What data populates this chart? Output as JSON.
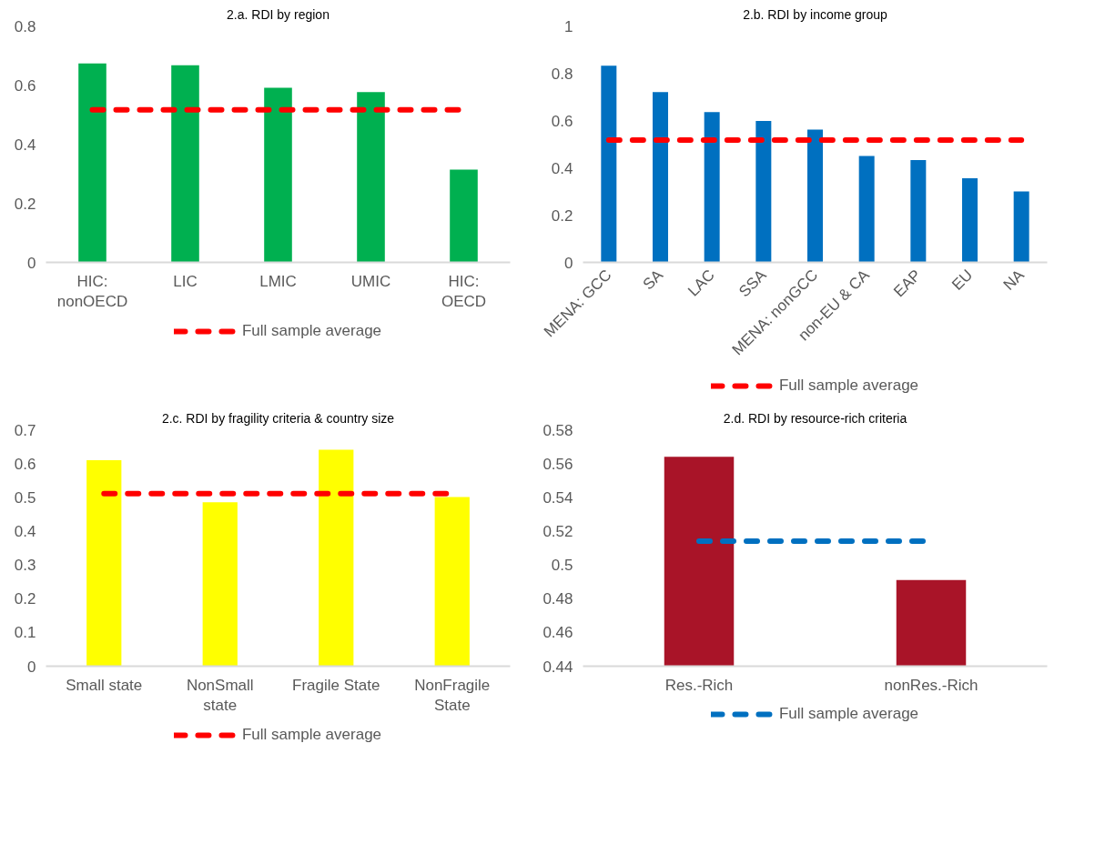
{
  "chart_data": [
    {
      "type": "bar",
      "title": "2.a. RDI by region",
      "categories": [
        "HIC:\nnonOECD",
        "LIC",
        "LMIC",
        "UMIC",
        "HIC:\nOECD"
      ],
      "ylim": [
        0,
        0.8
      ],
      "yticks": [
        0,
        0.2,
        0.4,
        0.6,
        0.8
      ],
      "grid": false,
      "legend": "bottom",
      "series": [
        {
          "color": "#00b050",
          "values": [
            0.673,
            0.667,
            0.591,
            0.576,
            0.314
          ]
        },
        {
          "type": "line",
          "name": "Full sample average",
          "color": "#ff0000",
          "line_style": "dashed",
          "values": [
            0.516,
            0.516,
            0.516,
            0.516,
            0.516
          ]
        }
      ]
    },
    {
      "type": "bar",
      "title": "2.b. RDI by income group",
      "categories": [
        "MENA: GCC",
        "SA",
        "LAC",
        "SSA",
        "MENA: nonGCC",
        "non-EU & CA",
        "EAP",
        "EU",
        "NA"
      ],
      "ylim": [
        0,
        1
      ],
      "yticks": [
        0,
        0.2,
        0.4,
        0.6,
        0.8,
        1
      ],
      "grid": false,
      "legend": "bottom",
      "series": [
        {
          "color": "#0070c0",
          "values": [
            0.832,
            0.72,
            0.636,
            0.598,
            0.562,
            0.45,
            0.433,
            0.356,
            0.3
          ]
        },
        {
          "type": "line",
          "name": "Full sample average",
          "color": "#ff0000",
          "line_style": "dashed",
          "values": [
            0.517,
            0.517,
            0.517,
            0.517,
            0.517,
            0.517,
            0.517,
            0.517,
            0.517
          ]
        }
      ]
    },
    {
      "type": "bar",
      "title": "2.c. RDI by fragility criteria & country size",
      "categories": [
        "Small state",
        "NonSmall\nstate",
        "Fragile State",
        "NonFragile\nState"
      ],
      "ylim": [
        0,
        0.7
      ],
      "yticks": [
        0,
        0.1,
        0.2,
        0.3,
        0.4,
        0.5,
        0.6,
        0.7
      ],
      "grid": false,
      "legend": "bottom",
      "series": [
        {
          "color": "#ffff00",
          "values": [
            0.61,
            0.485,
            0.641,
            0.501
          ]
        },
        {
          "type": "line",
          "name": "Full sample average",
          "color": "#ff0000",
          "line_style": "dashed",
          "values": [
            0.511,
            0.511,
            0.511,
            0.511
          ]
        }
      ]
    },
    {
      "type": "bar",
      "title": "2.d. RDI by resource-rich criteria",
      "categories": [
        "Res.-Rich",
        "nonRes.-Rich"
      ],
      "ylim": [
        0.44,
        0.58
      ],
      "yticks": [
        0.44,
        0.46,
        0.48,
        0.5,
        0.52,
        0.54,
        0.56,
        0.58
      ],
      "grid": false,
      "legend": "bottom",
      "series": [
        {
          "color": "#a91428",
          "values": [
            0.564,
            0.491
          ]
        },
        {
          "type": "line",
          "name": "Full sample average",
          "color": "#0070c0",
          "line_style": "dashed",
          "values": [
            0.514,
            0.514
          ]
        }
      ]
    }
  ]
}
